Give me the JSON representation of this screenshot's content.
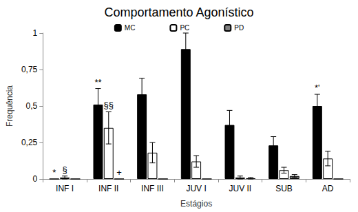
{
  "chart_data": {
    "type": "bar",
    "title": "Comportamento Agonístico",
    "x_label": "Estágios",
    "y_label": "Frequência",
    "categories": [
      "INF I",
      "INF II",
      "INF III",
      "JUV I",
      "JUV II",
      "SUB",
      "AD"
    ],
    "series": [
      {
        "name": "MC",
        "color": "#000000",
        "values": [
          0,
          0.51,
          0.58,
          0.89,
          0.37,
          0.23,
          0.5
        ],
        "errors": [
          0,
          0.11,
          0.11,
          0.11,
          0.1,
          0.06,
          0.08
        ],
        "annotations": [
          "*",
          "**",
          null,
          null,
          null,
          null,
          "*'"
        ]
      },
      {
        "name": "PC",
        "color": "#ffffff",
        "values": [
          0.01,
          0.35,
          0.18,
          0.12,
          0.01,
          0.06,
          0.14
        ],
        "errors": [
          0.01,
          0.11,
          0.07,
          0.04,
          0.01,
          0.02,
          0.05
        ],
        "annotations": [
          "§",
          "§§",
          null,
          null,
          null,
          null,
          null
        ]
      },
      {
        "name": "PD",
        "color": "#808080",
        "values": [
          0,
          0,
          0,
          0,
          0.005,
          0.02,
          0
        ],
        "errors": [
          0,
          0,
          0,
          0,
          0.005,
          0.01,
          0
        ],
        "annotations": [
          null,
          "+",
          null,
          null,
          null,
          null,
          null
        ]
      }
    ],
    "ylim": [
      0,
      1
    ],
    "yticks": [
      0,
      {
        "value": 0.25,
        "label": "0,25"
      },
      {
        "value": 0.5,
        "label": "0,5"
      },
      {
        "value": 0.75,
        "label": "0,75"
      },
      1
    ],
    "grid": false,
    "legend": "top"
  }
}
